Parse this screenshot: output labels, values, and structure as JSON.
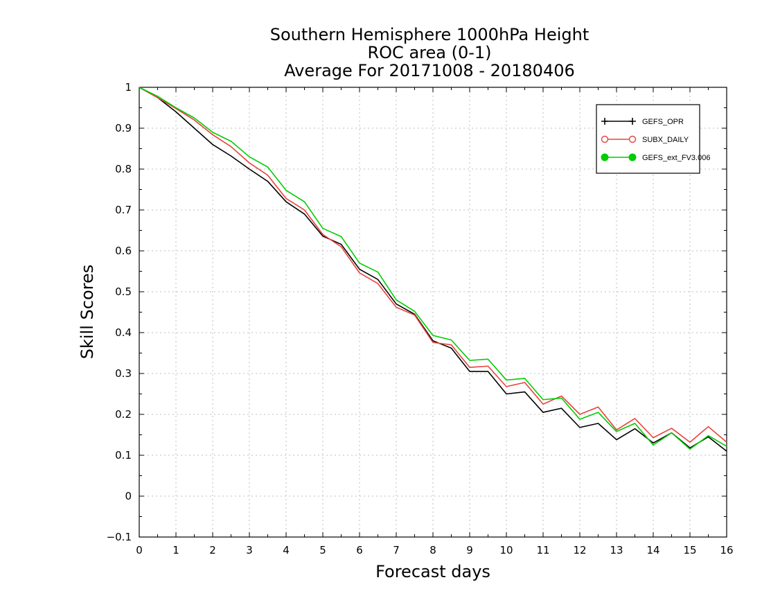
{
  "chart_data": {
    "type": "line",
    "title": [
      "Southern Hemisphere 1000hPa Height",
      "ROC area (0-1)",
      "Average For 20171008 - 20180406"
    ],
    "xlabel": "Forecast days",
    "ylabel": "Skill Scores",
    "xlim": [
      0,
      16
    ],
    "ylim": [
      -0.1,
      1
    ],
    "xticks": [
      0,
      1,
      2,
      3,
      4,
      5,
      6,
      7,
      8,
      9,
      10,
      11,
      12,
      13,
      14,
      15,
      16
    ],
    "yticks": [
      -0.1,
      0,
      0.1,
      0.2,
      0.3,
      0.4,
      0.5,
      0.6,
      0.7,
      0.8,
      0.9,
      1
    ],
    "ytick_labels": [
      "−0.1",
      "0",
      "0.1",
      "0.2",
      "0.3",
      "0.4",
      "0.5",
      "0.6",
      "0.7",
      "0.8",
      "0.9",
      "1"
    ],
    "grid": true,
    "legend_position": "top-right",
    "x": [
      0,
      0.5,
      1,
      1.5,
      2,
      2.5,
      3,
      3.5,
      4,
      4.5,
      5,
      5.5,
      6,
      6.5,
      7,
      7.5,
      8,
      8.5,
      9,
      9.5,
      10,
      10.5,
      11,
      11.5,
      12,
      12.5,
      13,
      13.5,
      14,
      14.5,
      15,
      15.5,
      16
    ],
    "series": [
      {
        "name": "GEFS_OPR",
        "color": "#000000",
        "marker": "plus",
        "values": [
          1.0,
          0.975,
          0.94,
          0.9,
          0.86,
          0.832,
          0.8,
          0.77,
          0.72,
          0.69,
          0.636,
          0.616,
          0.555,
          0.53,
          0.47,
          0.445,
          0.38,
          0.362,
          0.305,
          0.305,
          0.25,
          0.255,
          0.205,
          0.215,
          0.168,
          0.178,
          0.138,
          0.165,
          0.13,
          0.155,
          0.118,
          0.145,
          0.11
        ]
      },
      {
        "name": "SUBX_DAILY",
        "color": "#e8413c",
        "marker": "circle-open",
        "values": [
          1.0,
          0.975,
          0.948,
          0.92,
          0.884,
          0.855,
          0.815,
          0.785,
          0.728,
          0.7,
          0.64,
          0.61,
          0.546,
          0.52,
          0.462,
          0.443,
          0.376,
          0.37,
          0.315,
          0.318,
          0.268,
          0.278,
          0.225,
          0.245,
          0.2,
          0.218,
          0.162,
          0.19,
          0.143,
          0.166,
          0.132,
          0.17,
          0.132
        ]
      },
      {
        "name": "GEFS_ext_FV3.006",
        "color": "#00cc00",
        "marker": "circle-filled",
        "values": [
          1.0,
          0.978,
          0.95,
          0.925,
          0.89,
          0.868,
          0.83,
          0.805,
          0.748,
          0.72,
          0.655,
          0.635,
          0.57,
          0.548,
          0.48,
          0.452,
          0.393,
          0.382,
          0.332,
          0.335,
          0.284,
          0.288,
          0.236,
          0.24,
          0.188,
          0.205,
          0.158,
          0.178,
          0.125,
          0.155,
          0.115,
          0.148,
          0.122
        ]
      }
    ]
  }
}
